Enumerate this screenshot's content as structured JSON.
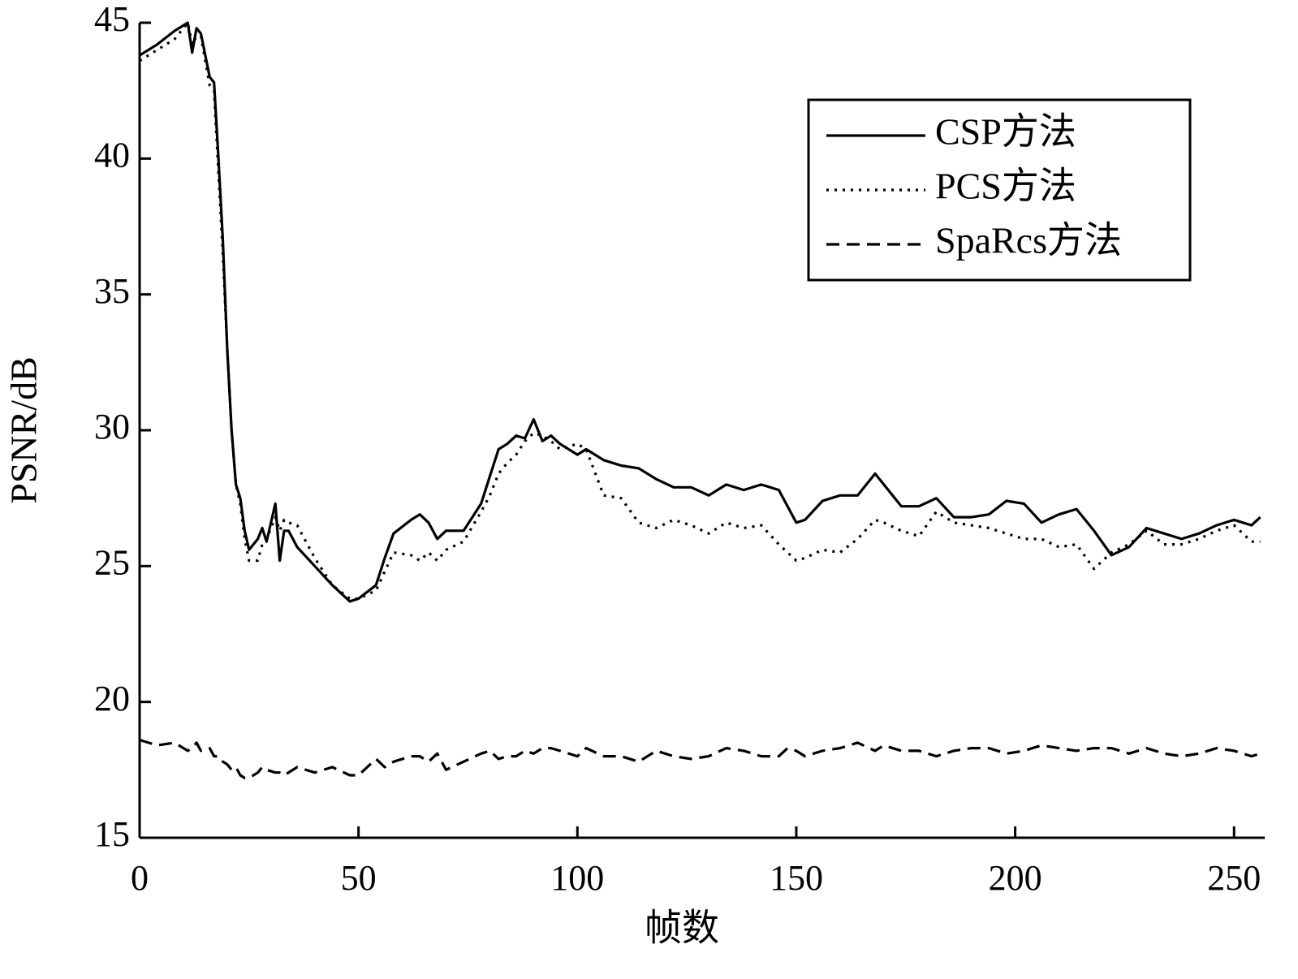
{
  "chart_data": {
    "type": "line",
    "xlabel": "帧数",
    "ylabel": "PSNR/dB",
    "x": [
      0,
      4,
      8,
      11,
      12,
      13,
      14,
      16,
      17,
      18,
      19,
      20,
      21,
      22,
      23,
      24,
      25,
      27,
      28,
      29,
      31,
      32,
      33,
      34,
      36,
      40,
      44,
      48,
      50,
      54,
      56,
      58,
      62,
      64,
      66,
      68,
      70,
      74,
      78,
      80,
      82,
      84,
      86,
      88,
      90,
      92,
      94,
      96,
      100,
      102,
      106,
      110,
      114,
      118,
      122,
      126,
      130,
      134,
      138,
      142,
      146,
      148,
      150,
      152,
      156,
      160,
      164,
      168,
      170,
      174,
      178,
      182,
      186,
      190,
      194,
      198,
      202,
      206,
      210,
      214,
      218,
      222,
      226,
      230,
      234,
      238,
      242,
      246,
      250,
      254,
      256
    ],
    "series": [
      {
        "name": "CSP方法",
        "color": "#000000",
        "dash": "solid",
        "values": [
          43.8,
          44.2,
          44.7,
          45.0,
          43.9,
          44.8,
          44.6,
          43.0,
          42.8,
          40,
          37,
          33,
          30,
          28,
          27.5,
          26.3,
          25.6,
          26.0,
          26.4,
          25.9,
          27.3,
          25.2,
          26.3,
          26.3,
          25.7,
          25.0,
          24.3,
          23.7,
          23.8,
          24.3,
          25.3,
          26.2,
          26.7,
          26.9,
          26.6,
          26.0,
          26.3,
          26.3,
          27.3,
          28.3,
          29.3,
          29.5,
          29.8,
          29.7,
          30.4,
          29.6,
          29.8,
          29.5,
          29.1,
          29.3,
          28.9,
          28.7,
          28.6,
          28.2,
          27.9,
          27.9,
          27.6,
          28.0,
          27.8,
          28.0,
          27.8,
          27.2,
          26.6,
          26.7,
          27.4,
          27.6,
          27.6,
          28.4,
          28.0,
          27.2,
          27.2,
          27.5,
          26.8,
          26.8,
          26.9,
          27.4,
          27.3,
          26.6,
          26.9,
          27.1,
          26.3,
          25.4,
          25.7,
          26.4,
          26.2,
          26.0,
          26.2,
          26.5,
          26.7,
          26.5,
          26.8
        ]
      },
      {
        "name": "PCS方法",
        "color": "#000000",
        "dash": "dotted",
        "values": [
          43.6,
          44.0,
          44.4,
          45.0,
          44.2,
          44.5,
          44.5,
          42.7,
          42.5,
          39.5,
          36.5,
          33,
          30,
          28,
          27.3,
          26.0,
          25.2,
          25.2,
          25.8,
          26.0,
          26.8,
          26.3,
          26.7,
          26.6,
          26.5,
          25.3,
          24.3,
          23.8,
          23.8,
          24.1,
          24.8,
          25.5,
          25.4,
          25.2,
          25.5,
          25.2,
          25.6,
          25.9,
          27.0,
          27.6,
          28.4,
          28.8,
          29.1,
          29.6,
          29.9,
          29.8,
          29.6,
          29.3,
          29.5,
          29.3,
          27.6,
          27.5,
          26.6,
          26.4,
          26.7,
          26.5,
          26.2,
          26.6,
          26.4,
          26.5,
          25.8,
          25.5,
          25.2,
          25.3,
          25.6,
          25.5,
          26.0,
          26.7,
          26.6,
          26.3,
          26.1,
          27.0,
          26.6,
          26.5,
          26.4,
          26.2,
          26.0,
          26.0,
          25.7,
          25.8,
          24.9,
          25.5,
          25.8,
          26.3,
          25.8,
          25.8,
          26.0,
          26.3,
          26.5,
          25.9,
          25.9
        ]
      },
      {
        "name": "SpaRcs方法",
        "color": "#000000",
        "dash": "dashed",
        "values": [
          18.6,
          18.4,
          18.5,
          18.2,
          18.3,
          18.5,
          18.2,
          18.3,
          18.0,
          18.0,
          17.8,
          17.7,
          17.5,
          17.6,
          17.3,
          17.2,
          17.2,
          17.4,
          17.6,
          17.5,
          17.4,
          17.4,
          17.3,
          17.4,
          17.6,
          17.4,
          17.6,
          17.3,
          17.3,
          17.9,
          17.6,
          17.8,
          18.0,
          18.0,
          17.8,
          18.1,
          17.5,
          17.8,
          18.1,
          18.2,
          17.9,
          18.0,
          18.0,
          18.2,
          18.1,
          18.3,
          18.3,
          18.2,
          18.0,
          18.3,
          18.0,
          18.0,
          17.8,
          18.2,
          18.0,
          17.9,
          18.0,
          18.3,
          18.2,
          18.0,
          18.0,
          18.3,
          18.2,
          18.0,
          18.2,
          18.3,
          18.5,
          18.2,
          18.4,
          18.2,
          18.2,
          18.0,
          18.2,
          18.3,
          18.3,
          18.1,
          18.2,
          18.4,
          18.3,
          18.2,
          18.3,
          18.3,
          18.1,
          18.3,
          18.1,
          18.0,
          18.1,
          18.3,
          18.2,
          18.0,
          18.1
        ]
      }
    ],
    "xlim": [
      0,
      257
    ],
    "ylim": [
      15,
      45
    ],
    "xticks": [
      0,
      50,
      100,
      150,
      200,
      250
    ],
    "yticks": [
      15,
      20,
      25,
      30,
      35,
      40,
      45
    ],
    "grid": false,
    "legend": "upper right"
  }
}
